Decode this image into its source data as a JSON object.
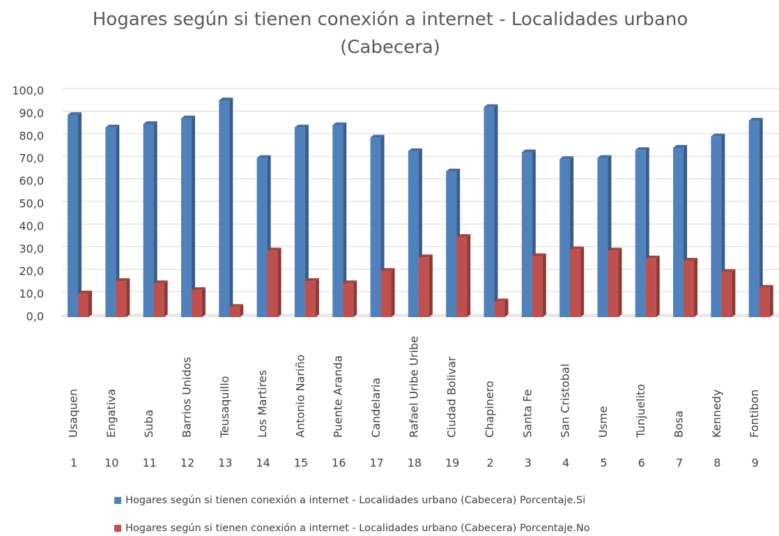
{
  "chart_data": {
    "type": "bar3d",
    "title": "Hogares según si tienen conexión a internet - Localidades urbano (Cabecera)",
    "categories": [
      "Usaquen",
      "Engativa",
      "Suba",
      "Barrios Unidos",
      "Teusaquillo",
      "Los Martires",
      "Antonio Nariño",
      "Puente Aranda",
      "Candelaria",
      "Rafael Uribe Uribe",
      "Ciudad Bolivar",
      "Chapinero",
      "Santa Fe",
      "San Cristobal",
      "Usme",
      "Tunjuelito",
      "Bosa",
      "Kennedy",
      "Fontibon"
    ],
    "codes": [
      "1",
      "10",
      "11",
      "12",
      "13",
      "14",
      "15",
      "16",
      "17",
      "18",
      "19",
      "2",
      "3",
      "4",
      "5",
      "6",
      "7",
      "8",
      "9"
    ],
    "series": [
      {
        "name": "Hogares según si tienen conexión a internet - Localidades urbano (Cabecera) Porcentaje.Si",
        "color": "#4f81bd",
        "values": [
          89.5,
          84,
          85.5,
          88,
          96,
          70.5,
          84,
          85,
          79.5,
          73.5,
          64.5,
          93,
          73,
          70,
          70.5,
          74,
          75,
          80,
          87
        ]
      },
      {
        "name": "Hogares según si tienen conexión a internet - Localidades urbano (Cabecera) Porcentaje.No",
        "color": "#c0504d",
        "values": [
          10.5,
          16,
          15,
          12,
          4.5,
          29.5,
          16,
          15,
          20.5,
          26.5,
          35.5,
          7,
          27,
          30,
          29.5,
          26,
          25,
          20,
          13
        ]
      }
    ],
    "ylim": [
      0,
      100
    ],
    "yticks": [
      {
        "value": 0,
        "label": "0,0"
      },
      {
        "value": 10,
        "label": "10,0"
      },
      {
        "value": 20,
        "label": "20,0"
      },
      {
        "value": 30,
        "label": "30,0"
      },
      {
        "value": 40,
        "label": "40,0"
      },
      {
        "value": 50,
        "label": "50,0"
      },
      {
        "value": 60,
        "label": "60,0"
      },
      {
        "value": 70,
        "label": "70,0"
      },
      {
        "value": 80,
        "label": "80,0"
      },
      {
        "value": 90,
        "label": "90,0"
      },
      {
        "value": 100,
        "label": "100,0"
      }
    ],
    "grid": true
  }
}
